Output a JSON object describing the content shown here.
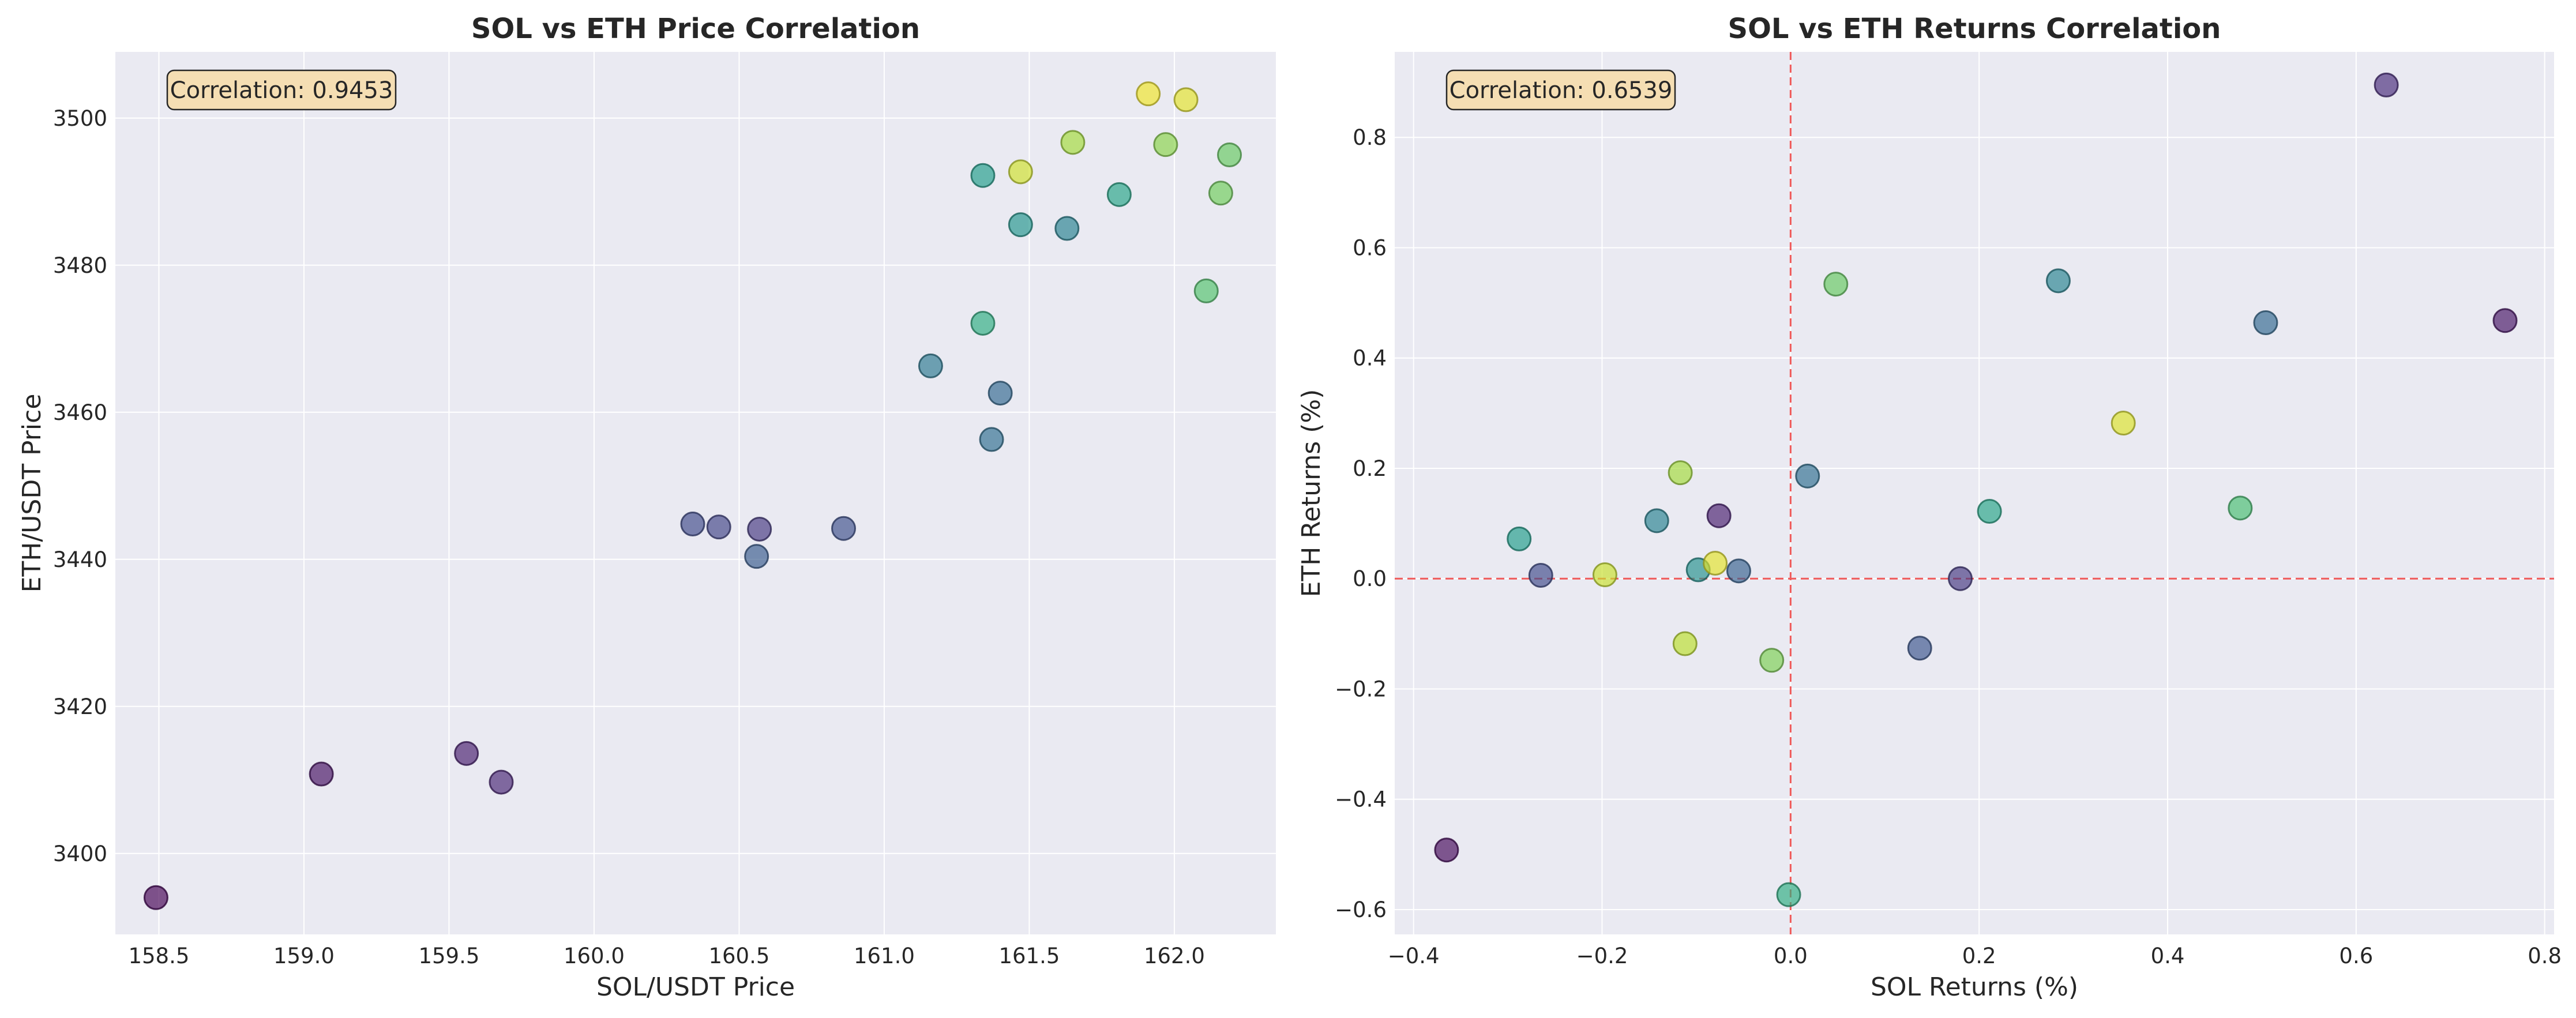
{
  "chart_data": [
    {
      "type": "scatter",
      "title": "SOL vs ETH Price Correlation",
      "xlabel": "SOL/USDT Price",
      "ylabel": "ETH/USDT Price",
      "xlim": [
        158.35,
        162.35
      ],
      "ylim": [
        3389,
        3509
      ],
      "xticks": [
        "158.5",
        "159.0",
        "159.5",
        "160.0",
        "160.5",
        "161.0",
        "161.5",
        "162.0"
      ],
      "xtick_values": [
        158.5,
        159.0,
        159.5,
        160.0,
        160.5,
        161.0,
        161.5,
        162.0
      ],
      "yticks": [
        "3400",
        "3420",
        "3440",
        "3460",
        "3480",
        "3500"
      ],
      "ytick_values": [
        3400,
        3420,
        3440,
        3460,
        3480,
        3500
      ],
      "annotation": "Correlation: 0.9453",
      "grid": true,
      "colormap": "viridis",
      "points": [
        {
          "x": 158.49,
          "y": 3394.0,
          "c": 0.0
        },
        {
          "x": 159.06,
          "y": 3410.8,
          "c": 0.04
        },
        {
          "x": 159.56,
          "y": 3413.6,
          "c": 0.08
        },
        {
          "x": 159.68,
          "y": 3409.7,
          "c": 0.1
        },
        {
          "x": 160.34,
          "y": 3444.8,
          "c": 0.22
        },
        {
          "x": 160.43,
          "y": 3444.4,
          "c": 0.2
        },
        {
          "x": 160.57,
          "y": 3444.1,
          "c": 0.16
        },
        {
          "x": 160.56,
          "y": 3440.4,
          "c": 0.28
        },
        {
          "x": 160.86,
          "y": 3444.2,
          "c": 0.24
        },
        {
          "x": 161.16,
          "y": 3466.3,
          "c": 0.4
        },
        {
          "x": 161.37,
          "y": 3456.3,
          "c": 0.36
        },
        {
          "x": 161.4,
          "y": 3462.6,
          "c": 0.33
        },
        {
          "x": 161.34,
          "y": 3472.1,
          "c": 0.62
        },
        {
          "x": 161.34,
          "y": 3492.2,
          "c": 0.55
        },
        {
          "x": 161.47,
          "y": 3485.5,
          "c": 0.52
        },
        {
          "x": 161.63,
          "y": 3485.0,
          "c": 0.44
        },
        {
          "x": 161.81,
          "y": 3489.6,
          "c": 0.58
        },
        {
          "x": 161.47,
          "y": 3492.7,
          "c": 0.93
        },
        {
          "x": 161.65,
          "y": 3496.7,
          "c": 0.86
        },
        {
          "x": 161.91,
          "y": 3503.3,
          "c": 0.98
        },
        {
          "x": 162.04,
          "y": 3502.5,
          "c": 0.96
        },
        {
          "x": 161.97,
          "y": 3496.4,
          "c": 0.82
        },
        {
          "x": 162.19,
          "y": 3495.0,
          "c": 0.76
        },
        {
          "x": 162.16,
          "y": 3489.8,
          "c": 0.78
        },
        {
          "x": 162.11,
          "y": 3476.5,
          "c": 0.72
        }
      ]
    },
    {
      "type": "scatter",
      "title": "SOL vs ETH Returns Correlation",
      "xlabel": "SOL Returns (%)",
      "ylabel": "ETH Returns (%)",
      "xlim": [
        -0.42,
        0.81
      ],
      "ylim": [
        -0.645,
        0.955
      ],
      "xticks": [
        "−0.4",
        "−0.2",
        "0.0",
        "0.2",
        "0.4",
        "0.6",
        "0.8"
      ],
      "xtick_values": [
        -0.4,
        -0.2,
        0.0,
        0.2,
        0.4,
        0.6,
        0.8
      ],
      "yticks": [
        "−0.6",
        "−0.4",
        "−0.2",
        "0.0",
        "0.2",
        "0.4",
        "0.6",
        "0.8"
      ],
      "ytick_values": [
        -0.6,
        -0.4,
        -0.2,
        0.0,
        0.2,
        0.4,
        0.6,
        0.8
      ],
      "annotation": "Correlation: 0.6539",
      "grid": true,
      "reference_lines": {
        "x": 0,
        "y": 0,
        "color": "#f05a5a"
      },
      "colormap": "viridis",
      "points": [
        {
          "x": -0.365,
          "y": -0.492,
          "c": 0.02
        },
        {
          "x": -0.288,
          "y": 0.072,
          "c": 0.55
        },
        {
          "x": -0.265,
          "y": 0.006,
          "c": 0.22
        },
        {
          "x": -0.197,
          "y": 0.007,
          "c": 0.92
        },
        {
          "x": -0.142,
          "y": 0.105,
          "c": 0.44
        },
        {
          "x": -0.117,
          "y": 0.192,
          "c": 0.86
        },
        {
          "x": -0.112,
          "y": -0.118,
          "c": 0.9
        },
        {
          "x": -0.098,
          "y": 0.016,
          "c": 0.5
        },
        {
          "x": -0.08,
          "y": 0.028,
          "c": 0.96
        },
        {
          "x": -0.076,
          "y": 0.114,
          "c": 0.08
        },
        {
          "x": -0.055,
          "y": 0.014,
          "c": 0.3
        },
        {
          "x": -0.02,
          "y": -0.148,
          "c": 0.8
        },
        {
          "x": -0.002,
          "y": -0.573,
          "c": 0.62
        },
        {
          "x": 0.018,
          "y": 0.186,
          "c": 0.36
        },
        {
          "x": 0.048,
          "y": 0.534,
          "c": 0.76
        },
        {
          "x": 0.137,
          "y": -0.126,
          "c": 0.26
        },
        {
          "x": 0.18,
          "y": 0.0,
          "c": 0.16
        },
        {
          "x": 0.211,
          "y": 0.122,
          "c": 0.58
        },
        {
          "x": 0.284,
          "y": 0.54,
          "c": 0.45
        },
        {
          "x": 0.353,
          "y": 0.282,
          "c": 0.95
        },
        {
          "x": 0.477,
          "y": 0.128,
          "c": 0.7
        },
        {
          "x": 0.504,
          "y": 0.464,
          "c": 0.33
        },
        {
          "x": 0.632,
          "y": 0.895,
          "c": 0.12
        },
        {
          "x": 0.758,
          "y": 0.468,
          "c": 0.05
        }
      ]
    }
  ]
}
